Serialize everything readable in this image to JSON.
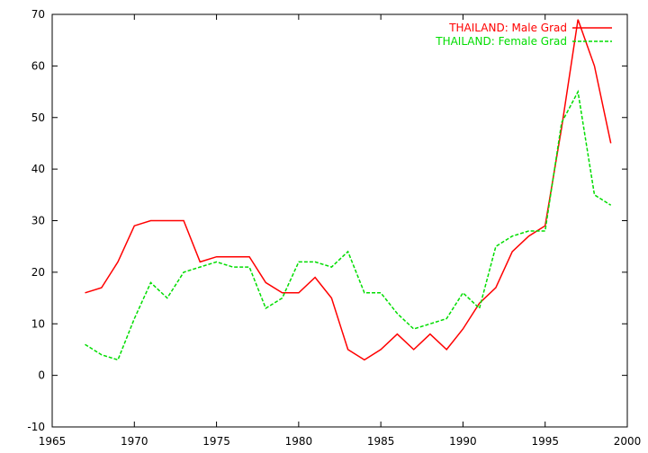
{
  "chart_data": {
    "type": "line",
    "title": "",
    "xlabel": "",
    "ylabel": "",
    "xlim": [
      1965,
      2000
    ],
    "ylim": [
      -10,
      70
    ],
    "xticks": [
      1965,
      1970,
      1975,
      1980,
      1985,
      1990,
      1995,
      2000
    ],
    "yticks": [
      -10,
      0,
      10,
      20,
      30,
      40,
      50,
      60,
      70
    ],
    "grid": false,
    "legend_position": "top-right",
    "series": [
      {
        "name": "THAILAND: Male Grad",
        "color": "#ff0000",
        "dash": "solid",
        "x": [
          1967,
          1968,
          1969,
          1970,
          1971,
          1972,
          1973,
          1974,
          1975,
          1976,
          1977,
          1978,
          1979,
          1980,
          1981,
          1982,
          1983,
          1984,
          1985,
          1986,
          1987,
          1988,
          1989,
          1990,
          1991,
          1992,
          1993,
          1994,
          1995,
          1996,
          1997,
          1998,
          1999
        ],
        "y": [
          16,
          17,
          22,
          29,
          30,
          30,
          30,
          22,
          23,
          23,
          23,
          18,
          16,
          16,
          19,
          15,
          5,
          3,
          5,
          8,
          5,
          8,
          5,
          9,
          14,
          17,
          24,
          27,
          29,
          48,
          69,
          60,
          45
        ]
      },
      {
        "name": "THAILAND: Female Grad",
        "color": "#00dd00",
        "dash": "dashed",
        "x": [
          1967,
          1968,
          1969,
          1970,
          1971,
          1972,
          1973,
          1974,
          1975,
          1976,
          1977,
          1978,
          1979,
          1980,
          1981,
          1982,
          1983,
          1984,
          1985,
          1986,
          1987,
          1988,
          1989,
          1990,
          1991,
          1992,
          1993,
          1994,
          1995,
          1996,
          1997,
          1998,
          1999
        ],
        "y": [
          6,
          4,
          3,
          11,
          18,
          15,
          20,
          21,
          22,
          21,
          21,
          13,
          15,
          22,
          22,
          21,
          24,
          16,
          16,
          12,
          9,
          10,
          11,
          16,
          13,
          25,
          27,
          28,
          28,
          49,
          55,
          35,
          33
        ]
      }
    ]
  }
}
